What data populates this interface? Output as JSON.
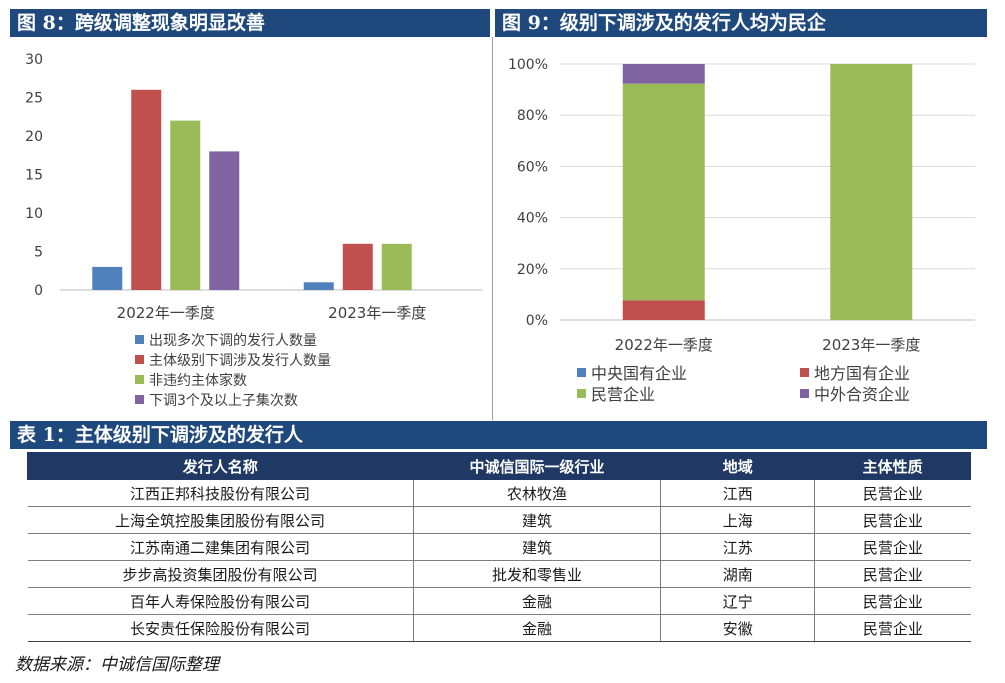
{
  "fig8_title": "图 8：跨级调整现象明显改善",
  "fig9_title": "图 9：级别下调涉及的发行人均为民企",
  "table_title": "表 1：主体级别下调涉及的发行人",
  "source_note": "数据来源：中诚信国际整理",
  "chart_data": [
    {
      "type": "bar",
      "categories": [
        "2022年一季度",
        "2023年一季度"
      ],
      "series": [
        {
          "name": "出现多次下调的发行人数量",
          "values": [
            3,
            1
          ],
          "color": "#4f81bd"
        },
        {
          "name": "主体级别下调涉及发行人数量",
          "values": [
            26,
            6
          ],
          "color": "#c0504d"
        },
        {
          "name": "非违约主体家数",
          "values": [
            22,
            6
          ],
          "color": "#9bbb59"
        },
        {
          "name": "下调3个及以上子集次数",
          "values": [
            18,
            0
          ],
          "color": "#8064a2"
        }
      ],
      "ylim": [
        0,
        30
      ],
      "yticks": [
        0,
        5,
        10,
        15,
        20,
        25,
        30
      ],
      "legend_position": "bottom",
      "grid": false
    },
    {
      "type": "bar",
      "stacked": true,
      "categories": [
        "2022年一季度",
        "2023年一季度"
      ],
      "series": [
        {
          "name": "中央国有企业",
          "values": [
            0,
            0
          ],
          "color": "#4f81bd"
        },
        {
          "name": "地方国有企业",
          "values": [
            7.7,
            0
          ],
          "color": "#c0504d"
        },
        {
          "name": "民营企业",
          "values": [
            84.6,
            100
          ],
          "color": "#9bbb59"
        },
        {
          "name": "中外合资企业",
          "values": [
            7.7,
            0
          ],
          "color": "#8064a2"
        }
      ],
      "ylim": [
        0,
        100
      ],
      "yticks": [
        "0%",
        "20%",
        "40%",
        "60%",
        "80%",
        "100%"
      ],
      "legend_position": "bottom",
      "grid": true
    }
  ],
  "table": {
    "headers": [
      "发行人名称",
      "中诚信国际一级行业",
      "地域",
      "主体性质"
    ],
    "rows": [
      [
        "江西正邦科技股份有限公司",
        "农林牧渔",
        "江西",
        "民营企业"
      ],
      [
        "上海全筑控股集团股份有限公司",
        "建筑",
        "上海",
        "民营企业"
      ],
      [
        "江苏南通二建集团有限公司",
        "建筑",
        "江苏",
        "民营企业"
      ],
      [
        "步步高投资集团股份有限公司",
        "批发和零售业",
        "湖南",
        "民营企业"
      ],
      [
        "百年人寿保险股份有限公司",
        "金融",
        "辽宁",
        "民营企业"
      ],
      [
        "长安责任保险股份有限公司",
        "金融",
        "安徽",
        "民营企业"
      ]
    ]
  }
}
